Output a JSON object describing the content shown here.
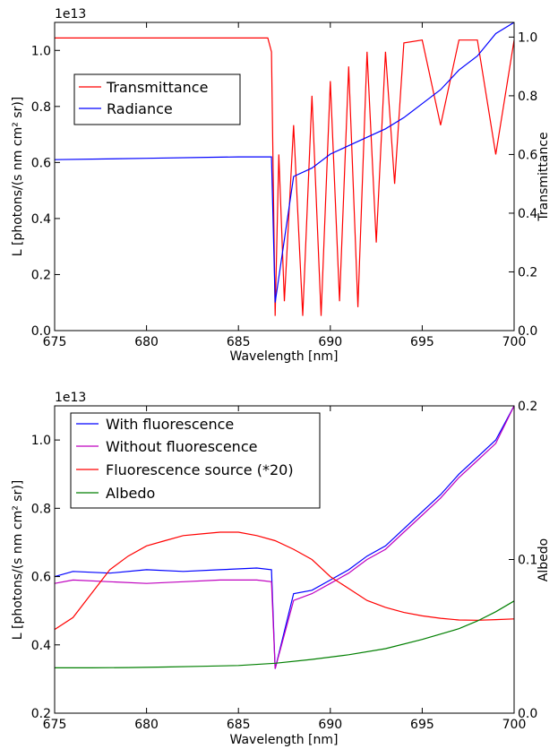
{
  "chart_data": [
    {
      "type": "line",
      "scale_note": "1e13",
      "xlabel": "Wavelength [nm]",
      "ylabel": "L [photons/(s nm cm² sr)]",
      "y2label": "Transmittance",
      "xlim": [
        675,
        700
      ],
      "ylim": [
        0.0,
        1.1
      ],
      "y2lim": [
        0.0,
        1.05
      ],
      "xticks": [
        "675",
        "680",
        "685",
        "690",
        "695",
        "700"
      ],
      "yticks": [
        "0.0",
        "0.2",
        "0.4",
        "0.6",
        "0.8",
        "1.0"
      ],
      "y2ticks": [
        "0.0",
        "0.2",
        "0.4",
        "0.6",
        "0.8",
        "1.0"
      ],
      "legend_position": "upper-left",
      "series": [
        {
          "name": "Transmittance",
          "axis": "right",
          "color": "#ff0000",
          "points": [
            [
              675,
              0.997
            ],
            [
              686.6,
              0.997
            ],
            [
              686.8,
              0.95
            ],
            [
              687.0,
              0.05
            ],
            [
              687.2,
              0.6
            ],
            [
              687.5,
              0.1
            ],
            [
              688,
              0.7
            ],
            [
              688.5,
              0.05
            ],
            [
              689,
              0.8
            ],
            [
              689.5,
              0.05
            ],
            [
              690,
              0.85
            ],
            [
              690.5,
              0.1
            ],
            [
              691,
              0.9
            ],
            [
              691.5,
              0.08
            ],
            [
              692,
              0.95
            ],
            [
              692.5,
              0.3
            ],
            [
              693,
              0.95
            ],
            [
              693.5,
              0.5
            ],
            [
              694,
              0.98
            ],
            [
              695,
              0.99
            ],
            [
              696,
              0.7
            ],
            [
              697,
              0.99
            ],
            [
              698,
              0.99
            ],
            [
              699,
              0.6
            ],
            [
              700,
              0.99
            ]
          ]
        },
        {
          "name": "Radiance",
          "axis": "left",
          "color": "#0000ff",
          "points": [
            [
              675,
              0.61
            ],
            [
              680,
              0.615
            ],
            [
              685,
              0.62
            ],
            [
              686.8,
              0.62
            ],
            [
              687.0,
              0.1
            ],
            [
              688,
              0.55
            ],
            [
              689,
              0.58
            ],
            [
              690,
              0.63
            ],
            [
              691,
              0.66
            ],
            [
              692,
              0.69
            ],
            [
              693,
              0.72
            ],
            [
              694,
              0.76
            ],
            [
              695,
              0.81
            ],
            [
              696,
              0.86
            ],
            [
              697,
              0.93
            ],
            [
              698,
              0.98
            ],
            [
              699,
              1.06
            ],
            [
              700,
              1.1
            ]
          ]
        }
      ]
    },
    {
      "type": "line",
      "scale_note": "1e13",
      "xlabel": "Wavelength [nm]",
      "ylabel": "L [photons/(s nm cm² sr)]",
      "y2label": "Albedo",
      "xlim": [
        675,
        700
      ],
      "ylim": [
        0.2,
        1.1
      ],
      "y2lim": [
        0.0,
        0.2
      ],
      "xticks": [
        "675",
        "680",
        "685",
        "690",
        "695",
        "700"
      ],
      "yticks": [
        "0.2",
        "0.4",
        "0.6",
        "0.8",
        "1.0"
      ],
      "y2ticks": [
        "0.0",
        "0.1",
        "0.2"
      ],
      "legend_position": "upper-left",
      "series": [
        {
          "name": "With fluorescence",
          "axis": "left",
          "color": "#0000ff",
          "points": [
            [
              675,
              0.6
            ],
            [
              676,
              0.615
            ],
            [
              678,
              0.61
            ],
            [
              680,
              0.62
            ],
            [
              682,
              0.615
            ],
            [
              684,
              0.62
            ],
            [
              686,
              0.625
            ],
            [
              686.8,
              0.62
            ],
            [
              687.0,
              0.33
            ],
            [
              688,
              0.55
            ],
            [
              689,
              0.56
            ],
            [
              690,
              0.59
            ],
            [
              691,
              0.62
            ],
            [
              692,
              0.66
            ],
            [
              693,
              0.69
            ],
            [
              694,
              0.74
            ],
            [
              695,
              0.79
            ],
            [
              696,
              0.84
            ],
            [
              697,
              0.9
            ],
            [
              698,
              0.95
            ],
            [
              699,
              1.0
            ],
            [
              700,
              1.1
            ]
          ]
        },
        {
          "name": "Without fluorescence",
          "axis": "left",
          "color": "#bf00bf",
          "points": [
            [
              675,
              0.58
            ],
            [
              676,
              0.59
            ],
            [
              678,
              0.585
            ],
            [
              680,
              0.58
            ],
            [
              682,
              0.585
            ],
            [
              684,
              0.59
            ],
            [
              686,
              0.59
            ],
            [
              686.8,
              0.585
            ],
            [
              687.0,
              0.33
            ],
            [
              688,
              0.53
            ],
            [
              689,
              0.55
            ],
            [
              690,
              0.58
            ],
            [
              691,
              0.61
            ],
            [
              692,
              0.65
            ],
            [
              693,
              0.68
            ],
            [
              694,
              0.73
            ],
            [
              695,
              0.78
            ],
            [
              696,
              0.83
            ],
            [
              697,
              0.89
            ],
            [
              698,
              0.94
            ],
            [
              699,
              0.99
            ],
            [
              700,
              1.1
            ]
          ]
        },
        {
          "name": "Fluorescence source (*20)",
          "axis": "left",
          "color": "#ff0000",
          "points": [
            [
              675,
              0.445
            ],
            [
              676,
              0.48
            ],
            [
              677,
              0.55
            ],
            [
              678,
              0.62
            ],
            [
              679,
              0.66
            ],
            [
              680,
              0.69
            ],
            [
              681,
              0.705
            ],
            [
              682,
              0.72
            ],
            [
              683,
              0.725
            ],
            [
              684,
              0.73
            ],
            [
              685,
              0.73
            ],
            [
              686,
              0.72
            ],
            [
              687,
              0.705
            ],
            [
              688,
              0.68
            ],
            [
              689,
              0.65
            ],
            [
              690,
              0.6
            ],
            [
              691,
              0.565
            ],
            [
              692,
              0.53
            ],
            [
              693,
              0.51
            ],
            [
              694,
              0.495
            ],
            [
              695,
              0.485
            ],
            [
              696,
              0.478
            ],
            [
              697,
              0.473
            ],
            [
              698,
              0.472
            ],
            [
              699,
              0.474
            ],
            [
              700,
              0.476
            ]
          ]
        },
        {
          "name": "Albedo",
          "axis": "right",
          "color": "#007f00",
          "points": [
            [
              675,
              0.0295
            ],
            [
              677,
              0.0295
            ],
            [
              679,
              0.0297
            ],
            [
              681,
              0.03
            ],
            [
              683,
              0.0305
            ],
            [
              685,
              0.031
            ],
            [
              687,
              0.0325
            ],
            [
              689,
              0.035
            ],
            [
              691,
              0.038
            ],
            [
              693,
              0.042
            ],
            [
              695,
              0.048
            ],
            [
              697,
              0.055
            ],
            [
              698,
              0.06
            ],
            [
              699,
              0.066
            ],
            [
              700,
              0.073
            ]
          ]
        }
      ]
    }
  ]
}
